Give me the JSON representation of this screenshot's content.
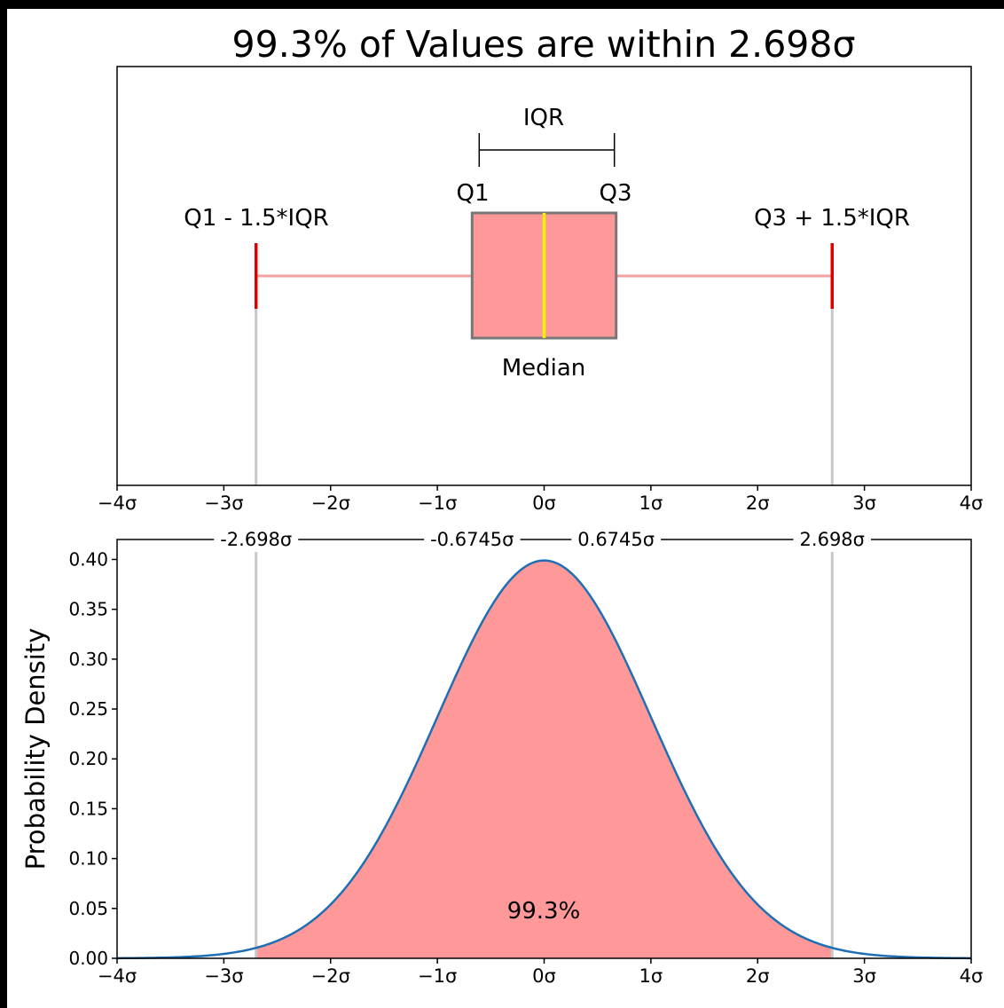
{
  "figure": {
    "title": "99.3% of Values are within 2.698σ"
  },
  "colors": {
    "page_background": "#000000",
    "panel_background": "#ffffff",
    "box_fill": "#ff9999",
    "box_edge": "#777777",
    "median_line": "#ffee00",
    "whisker": "#f4a0a0",
    "cap": "#dd0000",
    "curve": "#1f6fb4",
    "area_fill": "#ff9999",
    "guide": "#c8c8c8"
  },
  "chart_data": [
    {
      "type": "box",
      "title": "",
      "xlabel": "",
      "ylabel": "",
      "xlim": [
        -4,
        4
      ],
      "x_tick_labels": [
        "−4σ",
        "−3σ",
        "−2σ",
        "−1σ",
        "0σ",
        "1σ",
        "2σ",
        "3σ",
        "4σ"
      ],
      "box": {
        "q1": -0.6745,
        "median": 0,
        "q3": 0.6745,
        "whisker_low": -2.698,
        "whisker_high": 2.698
      },
      "annotations": {
        "iqr": "IQR",
        "q1": "Q1",
        "q3": "Q3",
        "low_fence": "Q1 - 1.5*IQR",
        "high_fence": "Q3 + 1.5*IQR",
        "median": "Median"
      }
    },
    {
      "type": "area",
      "title": "",
      "xlabel": "",
      "ylabel": "Probability Density",
      "xlim": [
        -4,
        4
      ],
      "ylim": [
        0,
        0.42
      ],
      "distribution": "standard normal",
      "mean": 0,
      "sd": 1,
      "shaded_range": [
        -2.698,
        2.698
      ],
      "shaded_label": "99.3%",
      "x_tick_labels": [
        "−4σ",
        "−3σ",
        "−2σ",
        "−1σ",
        "0σ",
        "1σ",
        "2σ",
        "3σ",
        "4σ"
      ],
      "y_ticks": [
        0,
        0.05,
        0.1,
        0.15,
        0.2,
        0.25,
        0.3,
        0.35,
        0.4
      ],
      "y_tick_labels": [
        "0.00",
        "0.05",
        "0.10",
        "0.15",
        "0.20",
        "0.25",
        "0.30",
        "0.35",
        "0.40"
      ],
      "top_markers": [
        {
          "x": -2.698,
          "label": "-2.698σ"
        },
        {
          "x": -0.6745,
          "label": "-0.6745σ"
        },
        {
          "x": 0.6745,
          "label": "0.6745σ"
        },
        {
          "x": 2.698,
          "label": "2.698σ"
        }
      ]
    }
  ]
}
